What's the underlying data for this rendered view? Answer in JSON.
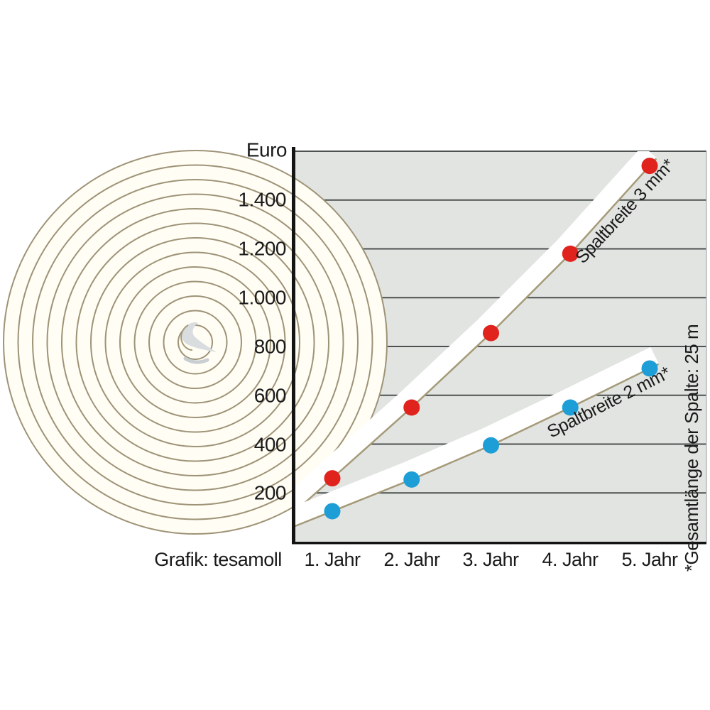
{
  "chart_data": {
    "type": "line",
    "categories": [
      "1. Jahr",
      "2. Jahr",
      "3. Jahr",
      "4. Jahr",
      "5. Jahr"
    ],
    "series": [
      {
        "name": "Spaltbreite 3 mm*",
        "color": "#e0231c",
        "values": [
          260,
          550,
          855,
          1180,
          1540
        ]
      },
      {
        "name": "Spaltbreite 2 mm*",
        "color": "#1e9ed6",
        "values": [
          125,
          255,
          395,
          550,
          710
        ]
      }
    ],
    "ylabel": "Euro",
    "yticks": [
      "200",
      "400",
      "600",
      "800",
      "1.000",
      "1.200",
      "1.400"
    ],
    "ylim": [
      0,
      1600
    ],
    "grid": "horizontal",
    "legend_position": "labels rotated along lines",
    "footnote": "*Gesamtlänge der Spalte: 25 m",
    "credit": "Grafik: tesamoll"
  },
  "colors": {
    "plot_bg": "#e1e4e1",
    "grid": "#4d514f",
    "axis": "#141414",
    "ring": "#9e9377",
    "roll_fill": "#fffdf4",
    "band": "#ffffff",
    "tape_edge": "#a59a78",
    "text": "#1a1a1a",
    "red": "#e0231c",
    "blue": "#1e9ed6"
  }
}
